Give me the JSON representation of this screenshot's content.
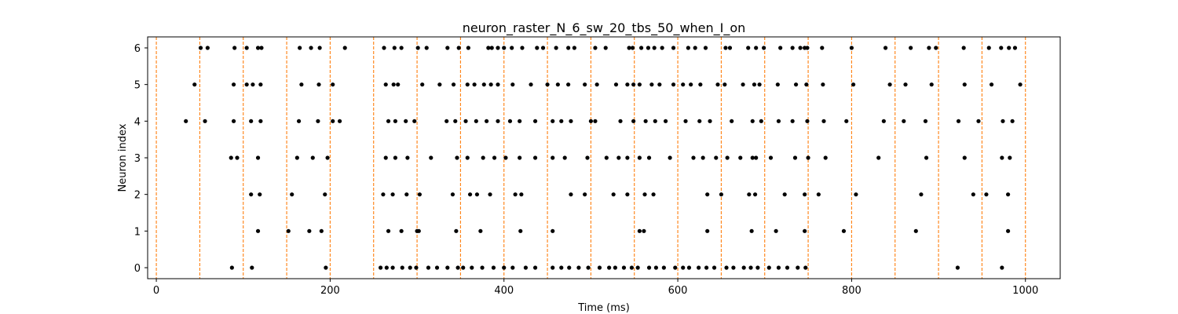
{
  "chart_data": {
    "type": "scatter",
    "title": "neuron_raster_N_6_sw_20_tbs_50_when_I_on",
    "xlabel": "Time (ms)",
    "ylabel": "Neuron index",
    "xlim": [
      -10,
      1040
    ],
    "ylim": [
      -0.3,
      6.3
    ],
    "xticks": [
      0,
      200,
      400,
      600,
      800,
      1000
    ],
    "yticks": [
      0,
      1,
      2,
      3,
      4,
      5,
      6
    ],
    "grid": false,
    "marker_color": "#000000",
    "vline_color": "#ff7f0e",
    "vlines": [
      0,
      50,
      100,
      150,
      200,
      250,
      300,
      350,
      400,
      450,
      500,
      550,
      600,
      650,
      700,
      750,
      800,
      850,
      900,
      950,
      1000
    ],
    "series": [
      {
        "neuron": 0,
        "spikes": [
          87,
          110,
          195,
          258,
          265,
          272,
          283,
          292,
          299,
          313,
          323,
          335,
          347,
          353,
          363,
          375,
          388,
          400,
          410,
          425,
          436,
          456,
          466,
          475,
          486,
          497,
          510,
          521,
          528,
          538,
          547,
          554,
          567,
          575,
          584,
          597,
          606,
          613,
          624,
          633,
          642,
          656,
          664,
          676,
          684,
          692,
          705,
          716,
          726,
          738,
          747,
          922,
          973
        ]
      },
      {
        "neuron": 1,
        "spikes": [
          117,
          152,
          176,
          190,
          267,
          282,
          300,
          302,
          345,
          373,
          419,
          456,
          556,
          561,
          634,
          685,
          713,
          746,
          791,
          874,
          980
        ]
      },
      {
        "neuron": 2,
        "spikes": [
          109,
          119,
          156,
          194,
          261,
          272,
          288,
          303,
          341,
          361,
          369,
          384,
          413,
          420,
          477,
          493,
          526,
          542,
          562,
          572,
          634,
          650,
          682,
          689,
          723,
          746,
          762,
          805,
          880,
          940,
          955,
          980
        ]
      },
      {
        "neuron": 3,
        "spikes": [
          86,
          93,
          117,
          162,
          180,
          197,
          264,
          275,
          289,
          316,
          346,
          358,
          376,
          389,
          402,
          418,
          436,
          456,
          470,
          496,
          518,
          532,
          542,
          556,
          567,
          591,
          618,
          629,
          644,
          657,
          672,
          686,
          690,
          707,
          735,
          750,
          770,
          831,
          886,
          930,
          973,
          982
        ]
      },
      {
        "neuron": 4,
        "spikes": [
          34,
          56,
          89,
          109,
          120,
          164,
          186,
          203,
          211,
          267,
          275,
          287,
          297,
          334,
          344,
          356,
          368,
          380,
          393,
          407,
          418,
          436,
          456,
          466,
          477,
          500,
          505,
          534,
          549,
          563,
          574,
          586,
          609,
          625,
          637,
          662,
          686,
          696,
          716,
          732,
          749,
          768,
          794,
          837,
          860,
          885,
          923,
          946,
          974,
          985
        ]
      },
      {
        "neuron": 5,
        "spikes": [
          44,
          89,
          104,
          111,
          120,
          167,
          187,
          203,
          264,
          273,
          278,
          306,
          326,
          342,
          358,
          366,
          377,
          385,
          393,
          410,
          431,
          450,
          462,
          474,
          493,
          507,
          529,
          542,
          549,
          556,
          570,
          579,
          595,
          606,
          615,
          626,
          646,
          654,
          675,
          688,
          694,
          715,
          736,
          748,
          767,
          802,
          844,
          862,
          892,
          930,
          961,
          994
        ]
      },
      {
        "neuron": 6,
        "spikes": [
          51,
          59,
          90,
          104,
          117,
          121,
          165,
          178,
          188,
          217,
          262,
          274,
          282,
          301,
          311,
          335,
          348,
          359,
          382,
          386,
          393,
          400,
          409,
          421,
          438,
          445,
          460,
          474,
          481,
          505,
          517,
          544,
          548,
          558,
          566,
          573,
          582,
          595,
          612,
          620,
          632,
          655,
          660,
          681,
          690,
          699,
          718,
          732,
          741,
          746,
          749,
          766,
          800,
          839,
          868,
          889,
          897,
          929,
          958,
          972,
          981,
          988
        ]
      }
    ]
  }
}
